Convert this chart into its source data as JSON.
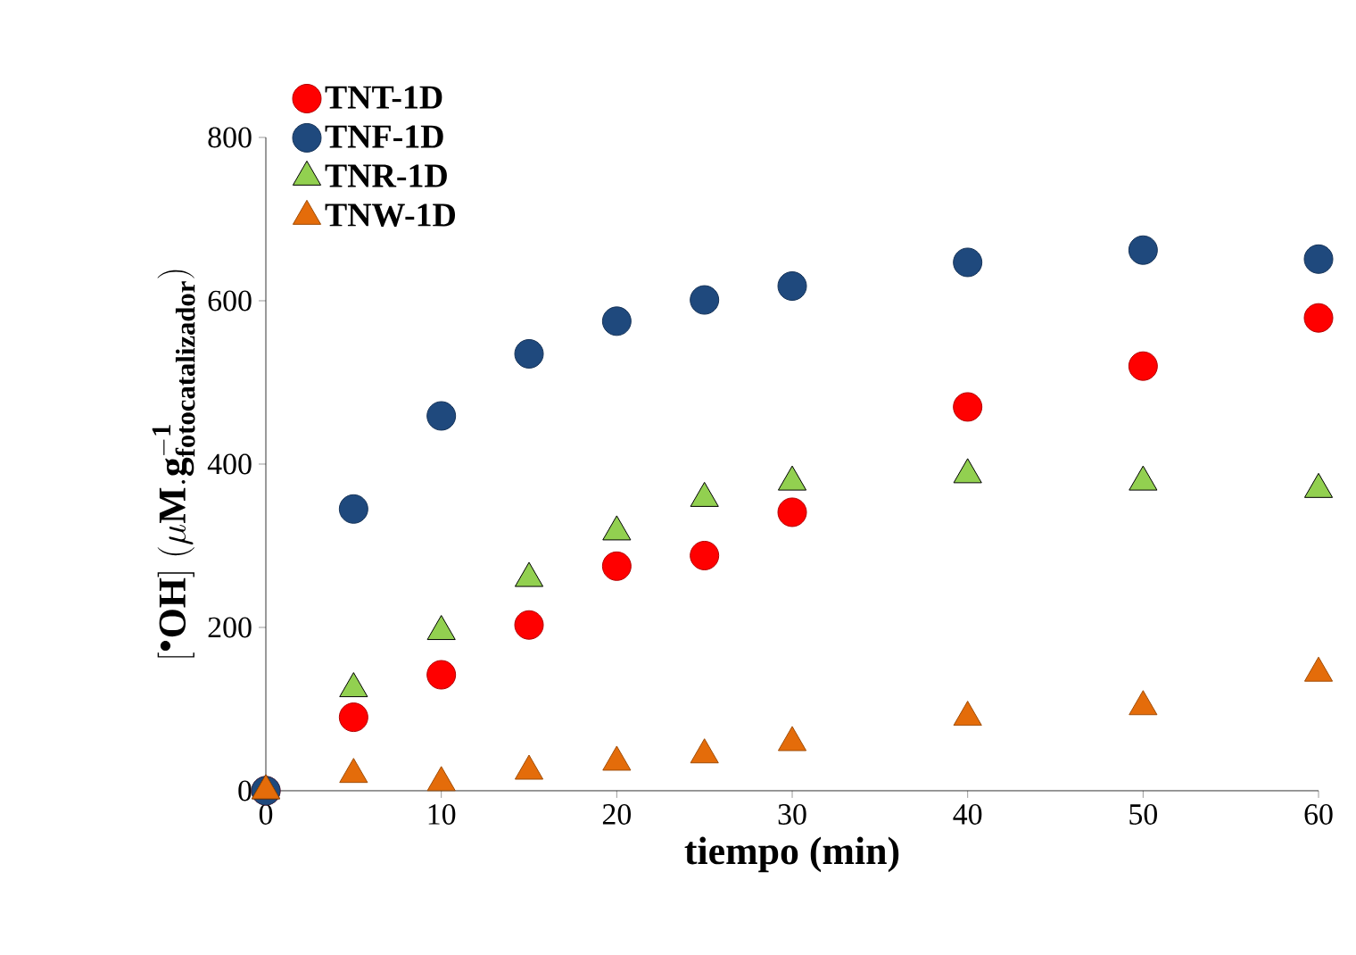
{
  "chart_data": {
    "type": "scatter",
    "xlabel": "tiempo (min)",
    "ylabel": "\\mathbf{[^{\\bullet}OH]\\ (\\mu M.g^{-1}_{fotocatalizador})}",
    "x": [
      0,
      5,
      10,
      15,
      20,
      25,
      30,
      40,
      50,
      60
    ],
    "xlim": [
      0,
      60
    ],
    "xticks": [
      0,
      10,
      20,
      30,
      40,
      50,
      60
    ],
    "ylim": [
      0,
      800
    ],
    "yticks": [
      0,
      200,
      400,
      600,
      800
    ],
    "grid": false,
    "legend": "top left",
    "series": [
      {
        "name": "TNT-1D",
        "color": "#ff0000",
        "marker": "circle",
        "values": [
          0,
          90,
          142,
          203,
          275,
          288,
          341,
          470,
          520,
          579
        ]
      },
      {
        "name": "TNF-1D",
        "color": "#1f497d",
        "marker": "circle",
        "values": [
          0,
          345,
          459,
          535,
          575,
          601,
          618,
          647,
          662,
          651
        ]
      },
      {
        "name": "TNR-1D",
        "color": "#92d050",
        "marker": "triangle",
        "values": [
          0,
          125,
          195,
          260,
          317,
          358,
          378,
          387,
          378,
          369
        ]
      },
      {
        "name": "TNW-1D",
        "color": "#e46c0a",
        "marker": "triangle",
        "values": [
          0,
          20,
          10,
          24,
          35,
          44,
          59,
          90,
          103,
          144
        ]
      }
    ]
  }
}
